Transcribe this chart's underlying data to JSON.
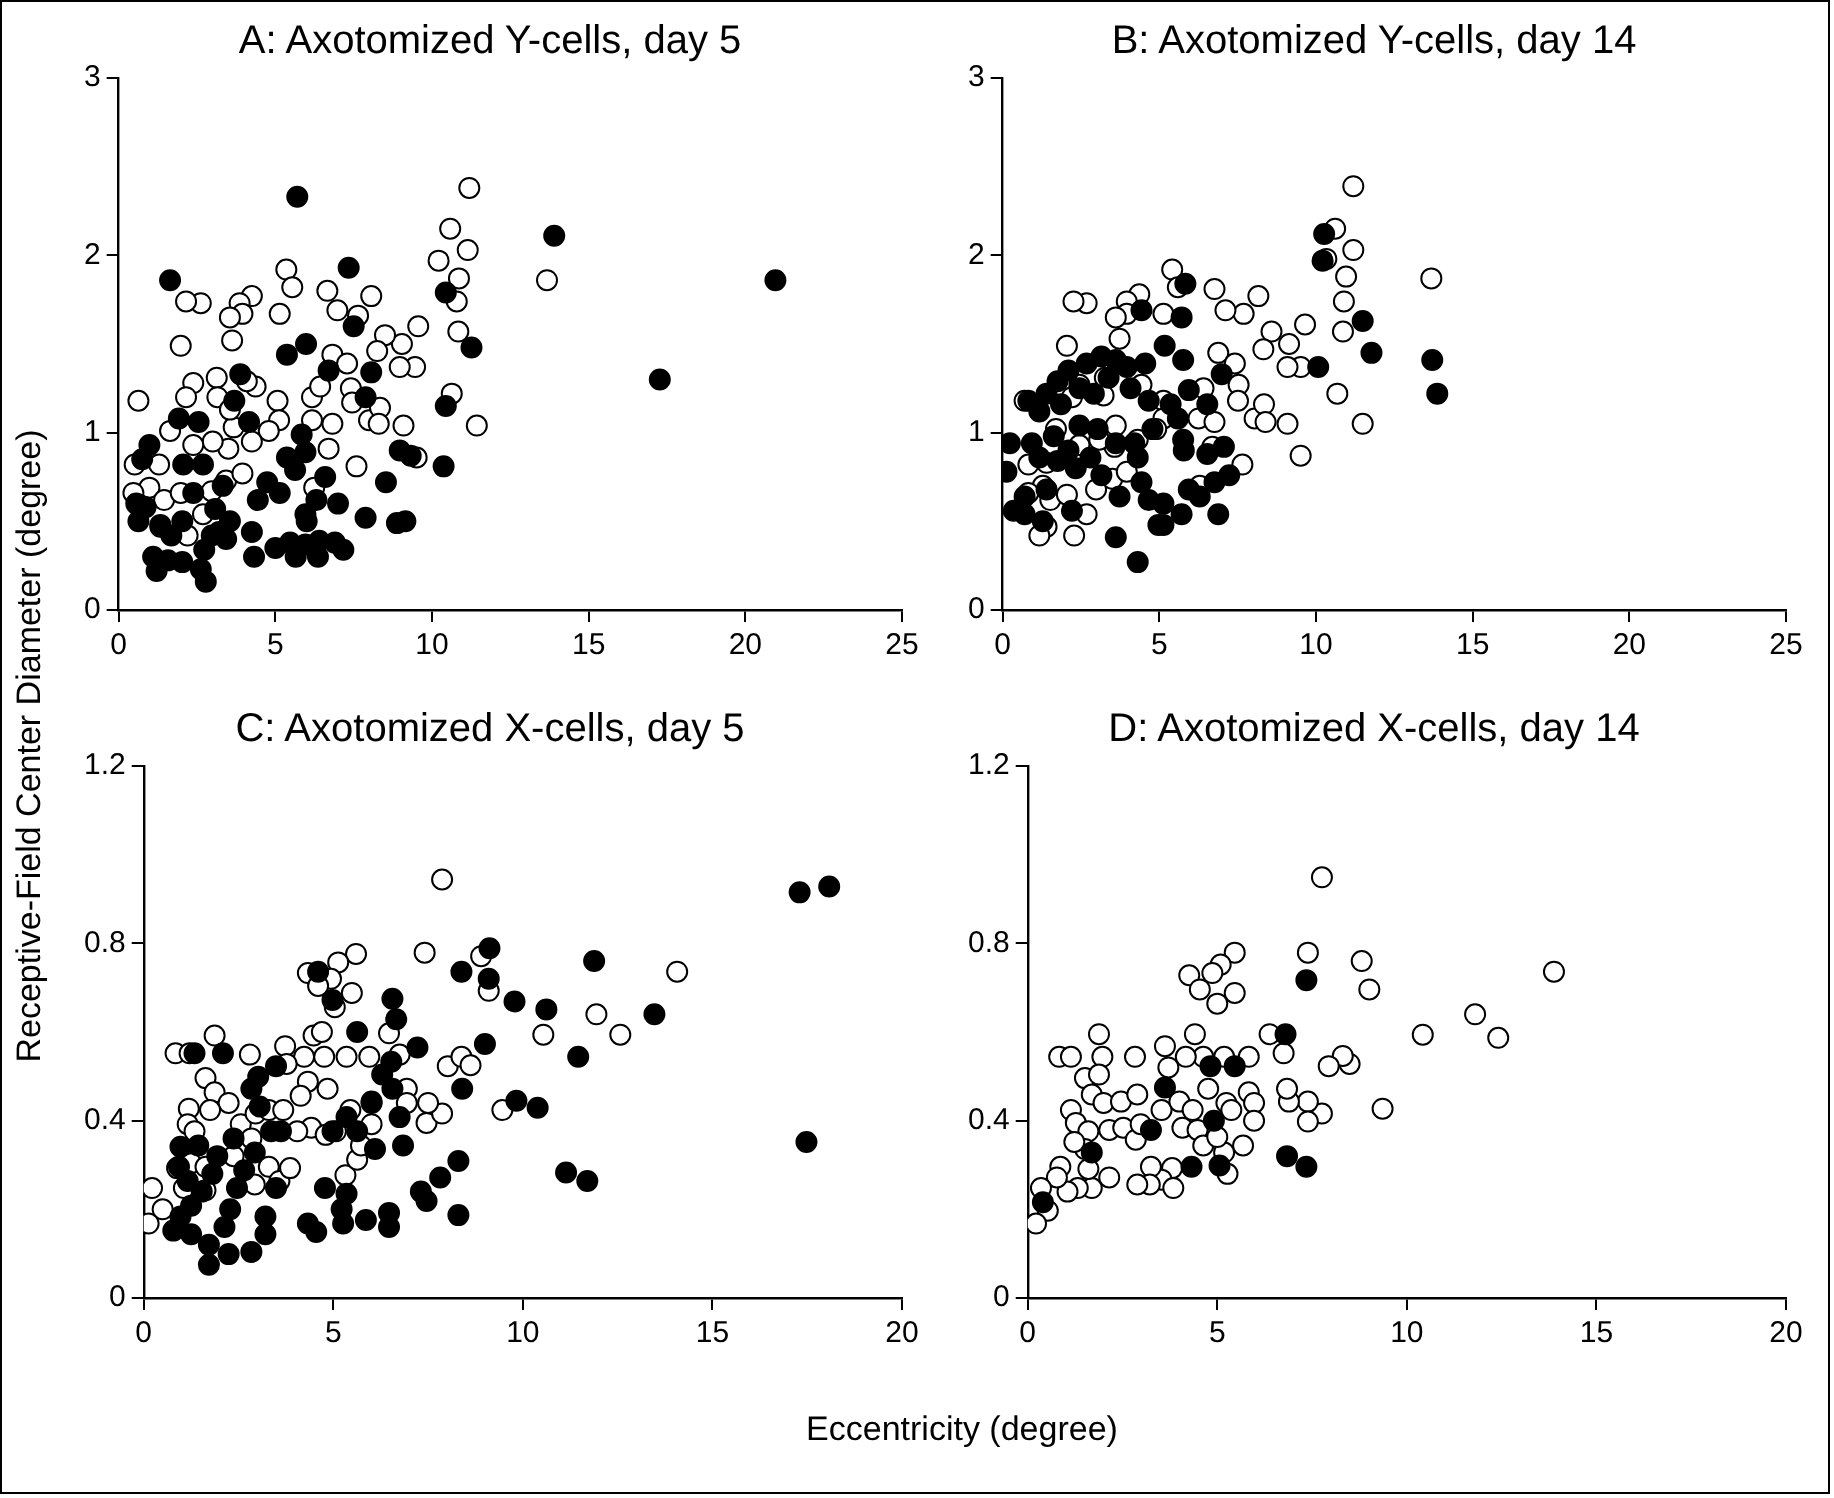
{
  "chart_data": [
    {
      "type": "scatter",
      "title": "A: Axotomized Y-cells, day 5",
      "ylabel": "Receptive-Field Center Diameter (degree)",
      "xlim": [
        0,
        25
      ],
      "xticks": [
        0,
        5,
        10,
        15,
        20,
        25
      ],
      "ylim": [
        0,
        3
      ],
      "yticks": [
        0,
        1,
        2,
        3
      ],
      "marker": "circle",
      "series": [
        {
          "color": "#000000",
          "x": [
            5.7,
            1.64,
            7.34,
            13.9,
            20.96,
            17.27,
            10.44,
            11.26,
            10.44,
            10.37,
            5.37,
            5.98,
            7.5,
            6.7,
            8.06,
            7.88,
            3.88,
            3.69,
            2.55,
            1.92,
            0.98,
            0.75,
            2.06,
            2.69,
            4.16,
            5.84,
            5.96,
            5.37,
            4.74,
            5.14,
            5.63,
            4.44,
            6.31,
            7.0,
            5.96,
            8.53,
            7.88,
            8.88,
            9.15,
            8.97,
            9.32,
            4.25,
            4.32,
            5.0,
            5.47,
            5.96,
            6.4,
            6.9,
            7.17,
            6.36,
            5.65,
            2.97,
            3.2,
            3.43,
            2.73,
            2.62,
            2.78,
            2.03,
            1.57,
            1.1,
            1.21,
            1.68,
            2.03,
            1.33,
            0.63,
            0.56,
            0.86,
            3.32,
            2.38,
            3.08,
            3.55,
            6.59,
            6.0
          ],
          "values": [
            2.33,
            1.86,
            1.93,
            2.11,
            1.86,
            1.3,
            1.79,
            1.48,
            1.15,
            0.81,
            1.44,
            1.5,
            1.6,
            1.35,
            1.34,
            1.2,
            1.33,
            1.18,
            1.06,
            1.08,
            0.93,
            0.85,
            0.82,
            0.82,
            1.06,
            0.99,
            0.89,
            0.86,
            0.72,
            0.66,
            0.79,
            0.62,
            0.62,
            0.6,
            0.54,
            0.72,
            0.52,
            0.49,
            0.5,
            0.9,
            0.87,
            0.44,
            0.3,
            0.35,
            0.38,
            0.37,
            0.39,
            0.38,
            0.34,
            0.3,
            0.3,
            0.42,
            0.44,
            0.4,
            0.34,
            0.23,
            0.16,
            0.27,
            0.28,
            0.3,
            0.22,
            0.42,
            0.5,
            0.48,
            0.5,
            0.6,
            0.58,
            0.7,
            0.66,
            0.57,
            0.5,
            0.75,
            0.5
          ]
        },
        {
          "color": "#ffffff",
          "x": [
            11.19,
            10.58,
            11.14,
            10.21,
            10.86,
            13.67,
            10.79,
            10.84,
            11.43,
            10.63,
            9.56,
            9.46,
            9.04,
            8.5,
            8.25,
            8.06,
            7.64,
            6.98,
            6.66,
            5.35,
            5.54,
            5.14,
            4.25,
            3.86,
            3.95,
            3.55,
            3.62,
            2.62,
            2.15,
            1.98,
            0.63,
            2.38,
            2.15,
            3.13,
            3.15,
            4.37,
            5.07,
            5.12,
            4.79,
            6.17,
            6.17,
            6.43,
            6.82,
            7.29,
            7.41,
            7.45,
            7.59,
            7.99,
            8.34,
            8.3,
            8.97,
            9.09,
            9.51,
            6.82,
            6.7,
            6.24,
            3.67,
            3.5,
            3.0,
            2.97,
            3.43,
            3.95,
            4.25,
            2.38,
            1.64,
            1.29,
            0.51,
            0.98,
            0.47,
            1.45,
            1.98,
            1.33,
            2.2,
            2.69,
            3.55,
            4.09
          ],
          "values": [
            2.38,
            2.15,
            2.03,
            1.97,
            1.87,
            1.86,
            1.74,
            1.57,
            1.04,
            1.22,
            1.6,
            1.37,
            1.5,
            1.55,
            1.46,
            1.77,
            1.66,
            1.69,
            1.8,
            1.92,
            1.82,
            1.67,
            1.77,
            1.73,
            1.67,
            1.65,
            1.52,
            1.73,
            1.74,
            1.49,
            1.18,
            1.28,
            1.2,
            1.31,
            1.2,
            1.26,
            1.18,
            1.07,
            1.01,
            1.2,
            1.07,
            1.26,
            1.44,
            1.39,
            1.25,
            1.17,
            0.81,
            1.07,
            1.14,
            1.05,
            1.37,
            1.04,
            0.86,
            1.05,
            0.91,
            0.69,
            1.03,
            0.91,
            0.95,
            0.67,
            0.73,
            0.77,
            0.95,
            0.93,
            1.01,
            0.82,
            0.82,
            0.69,
            0.66,
            0.62,
            0.66,
            0.47,
            0.42,
            0.54,
            1.13,
            1.29
          ]
        }
      ]
    },
    {
      "type": "scatter",
      "title": "B: Axotomized Y-cells, day 14",
      "xlim": [
        0,
        25
      ],
      "xticks": [
        0,
        5,
        10,
        15,
        20,
        25
      ],
      "ylim": [
        0,
        3
      ],
      "yticks": [
        0,
        1,
        2,
        3
      ],
      "marker": "circle",
      "series": [
        {
          "color": "#000000",
          "x": [
            10.26,
            10.21,
            11.49,
            11.77,
            13.71,
            13.87,
            10.07,
            5.83,
            5.71,
            4.43,
            5.17,
            5.76,
            6.99,
            6.53,
            4.55,
            3.96,
            3.61,
            3.15,
            2.68,
            2.1,
            1.75,
            1.4,
            0.82,
            1.17,
            1.86,
            2.45,
            2.91,
            3.38,
            4.08,
            4.66,
            5.36,
            5.94,
            5.59,
            5.76,
            5.78,
            7.06,
            6.53,
            4.78,
            4.2,
            4.31,
            3.61,
            3.03,
            2.45,
            2.1,
            1.63,
            1.17,
            1.75,
            2.33,
            2.8,
            3.15,
            1.4,
            0.7,
            0.35,
            0.7,
            0.23,
            0.93,
            0.12,
            1.28,
            2.21,
            3.73,
            4.43,
            4.66,
            5.13,
            5.13,
            5.71,
            5.94,
            6.29,
            6.76,
            7.23,
            6.88,
            3.61,
            4.31,
            4.97
          ],
          "values": [
            2.12,
            1.97,
            1.63,
            1.45,
            1.41,
            1.22,
            1.37,
            1.84,
            1.65,
            1.69,
            1.49,
            1.41,
            1.33,
            1.16,
            1.39,
            1.37,
            1.41,
            1.43,
            1.39,
            1.35,
            1.29,
            1.22,
            1.18,
            1.12,
            1.16,
            1.25,
            1.22,
            1.31,
            1.25,
            1.18,
            1.16,
            1.24,
            1.08,
            0.96,
            0.9,
            0.92,
            0.88,
            1.02,
            0.94,
            0.86,
            0.94,
            1.02,
            1.04,
            0.9,
            0.98,
            0.86,
            0.84,
            0.8,
            0.86,
            0.76,
            0.68,
            0.64,
            0.56,
            0.54,
            0.94,
            0.94,
            0.78,
            0.5,
            0.56,
            0.64,
            0.72,
            0.62,
            0.6,
            0.48,
            0.54,
            0.68,
            0.64,
            0.72,
            0.76,
            0.54,
            0.41,
            0.27,
            0.48
          ]
        },
        {
          "color": "#ffffff",
          "x": [
            11.19,
            10.61,
            11.19,
            10.33,
            10.96,
            13.68,
            10.89,
            10.86,
            11.49,
            10.68,
            9.65,
            9.51,
            9.14,
            8.58,
            8.32,
            8.16,
            7.69,
            7.11,
            6.76,
            5.41,
            5.59,
            5.13,
            4.36,
            3.96,
            3.96,
            3.61,
            3.73,
            2.68,
            2.26,
            2.05,
            0.7,
            2.45,
            2.21,
            3.26,
            3.22,
            4.43,
            5.13,
            5.13,
            4.9,
            6.25,
            6.41,
            6.88,
            7.41,
            7.53,
            7.51,
            7.65,
            8.04,
            8.34,
            8.39,
            9.09,
            9.09,
            9.51,
            6.76,
            6.69,
            6.29,
            3.61,
            3.57,
            3.08,
            2.98,
            3.5,
            3.96,
            4.31,
            2.45,
            1.7,
            1.4,
            0.82,
            1.28,
            0.82,
            1.52,
            2.05,
            1.4,
            2.28,
            2.68,
            1.17
          ],
          "values": [
            2.39,
            2.15,
            2.03,
            1.98,
            1.88,
            1.87,
            1.74,
            1.57,
            1.05,
            1.22,
            1.61,
            1.37,
            1.5,
            1.57,
            1.47,
            1.77,
            1.67,
            1.69,
            1.81,
            1.92,
            1.82,
            1.67,
            1.78,
            1.74,
            1.67,
            1.65,
            1.53,
            1.73,
            1.74,
            1.49,
            1.18,
            1.27,
            1.2,
            1.31,
            1.21,
            1.27,
            1.18,
            1.08,
            1.02,
            1.08,
            1.25,
            1.45,
            1.39,
            1.27,
            1.18,
            0.82,
            1.08,
            1.16,
            1.06,
            1.37,
            1.05,
            0.87,
            1.06,
            0.92,
            0.7,
            1.04,
            0.92,
            0.96,
            0.68,
            0.74,
            0.78,
            0.96,
            0.93,
            1.02,
            0.83,
            0.82,
            0.7,
            0.66,
            0.62,
            0.65,
            0.47,
            0.42,
            0.54,
            0.42
          ]
        }
      ]
    },
    {
      "type": "scatter",
      "title": "C: Axotomized X-cells, day 5",
      "xlabel": "Eccentricity (degree)",
      "xlim": [
        0,
        20
      ],
      "xticks": [
        0,
        5,
        10,
        15,
        20
      ],
      "ylim": [
        0,
        1.2
      ],
      "yticks": [
        0,
        0.4,
        0.8,
        1.2
      ],
      "marker": "circle",
      "series": [
        {
          "color": "#000000",
          "x": [
            17.3,
            18.08,
            17.48,
            11.88,
            13.47,
            10.62,
            9.78,
            11.46,
            9.12,
            9.1,
            8.38,
            9.0,
            9.83,
            10.39,
            8.4,
            11.14,
            11.7,
            8.3,
            7.82,
            7.46,
            7.31,
            8.3,
            6.47,
            6.47,
            5.86,
            5.26,
            5.22,
            5.35,
            4.78,
            4.33,
            4.55,
            5.63,
            6.56,
            6.66,
            7.22,
            6.53,
            6.29,
            6.56,
            6.75,
            6.84,
            6.01,
            6.1,
            5.63,
            5.35,
            4.98,
            4.98,
            4.6,
            3.49,
            2.84,
            3.06,
            3.36,
            2.93,
            2.65,
            2.46,
            2.28,
            2.13,
            2.84,
            2.24,
            1.72,
            1.72,
            1.25,
            0.78,
            0.97,
            1.25,
            1.53,
            1.81,
            1.94,
            1.44,
            0.97,
            0.93,
            1.16,
            2.37,
            3.21,
            3.21,
            3.49,
            3.62,
            1.34,
            2.09,
            3.02
          ],
          "values": [
            0.915,
            0.928,
            0.352,
            0.76,
            0.64,
            0.651,
            0.669,
            0.544,
            0.789,
            0.72,
            0.736,
            0.573,
            0.445,
            0.429,
            0.472,
            0.283,
            0.264,
            0.309,
            0.272,
            0.219,
            0.24,
            0.187,
            0.192,
            0.16,
            0.176,
            0.168,
            0.2,
            0.235,
            0.248,
            0.168,
            0.149,
            0.6,
            0.675,
            0.629,
            0.565,
            0.533,
            0.504,
            0.472,
            0.408,
            0.344,
            0.44,
            0.336,
            0.376,
            0.408,
            0.376,
            0.672,
            0.736,
            0.523,
            0.472,
            0.432,
            0.376,
            0.328,
            0.288,
            0.248,
            0.2,
            0.16,
            0.104,
            0.099,
            0.075,
            0.12,
            0.144,
            0.152,
            0.184,
            0.208,
            0.24,
            0.28,
            0.32,
            0.344,
            0.341,
            0.296,
            0.264,
            0.36,
            0.184,
            0.144,
            0.248,
            0.376,
            0.552,
            0.552,
            0.499
          ]
        },
        {
          "color": "#ffffff",
          "x": [
            7.87,
            7.41,
            5.6,
            5.13,
            4.94,
            4.33,
            4.6,
            5.49,
            5.04,
            8.9,
            9.1,
            11.94,
            12.57,
            14.07,
            10.54,
            8.02,
            8.38,
            8.62,
            9.46,
            7.46,
            7.87,
            7.5,
            6.94,
            6.94,
            6.47,
            6.75,
            5.95,
            5.35,
            4.76,
            4.23,
            4.48,
            4.7,
            6.01,
            6.01,
            5.45,
            4.85,
            4.33,
            4.14,
            4.42,
            4.8,
            5.07,
            5.32,
            5.63,
            5.73,
            3.73,
            3.77,
            2.8,
            1.87,
            0.84,
            1.21,
            1.63,
            1.87,
            2.24,
            1.75,
            1.19,
            1.16,
            1.34,
            2.56,
            2.95,
            3.3,
            3.68,
            4.05,
            0.88,
            1.25,
            1.63,
            0.22,
            0.5,
            0.13,
            1.06,
            1.63,
            2.37,
            2.93,
            3.3,
            3.58,
            3.86,
            2.84
          ],
          "values": [
            0.944,
            0.779,
            0.776,
            0.757,
            0.72,
            0.733,
            0.704,
            0.688,
            0.656,
            0.771,
            0.693,
            0.64,
            0.594,
            0.736,
            0.594,
            0.523,
            0.544,
            0.525,
            0.424,
            0.395,
            0.416,
            0.44,
            0.472,
            0.44,
            0.597,
            0.549,
            0.544,
            0.544,
            0.544,
            0.544,
            0.592,
            0.6,
            0.443,
            0.392,
            0.424,
            0.472,
            0.488,
            0.456,
            0.384,
            0.368,
            0.376,
            0.277,
            0.312,
            0.344,
            0.568,
            0.528,
            0.549,
            0.592,
            0.552,
            0.552,
            0.496,
            0.464,
            0.44,
            0.424,
            0.427,
            0.392,
            0.376,
            0.392,
            0.416,
            0.424,
            0.424,
            0.376,
            0.293,
            0.304,
            0.296,
            0.248,
            0.2,
            0.168,
            0.248,
            0.243,
            0.32,
            0.256,
            0.296,
            0.264,
            0.293,
            0.36
          ]
        }
      ]
    },
    {
      "type": "scatter",
      "title": "D: Axotomized X-cells, day 14",
      "xlim": [
        0,
        20
      ],
      "xticks": [
        0,
        5,
        10,
        15,
        20
      ],
      "ylim": [
        0,
        1.2
      ],
      "yticks": [
        0,
        0.4,
        0.8,
        1.2
      ],
      "marker": "circle",
      "series": [
        {
          "color": "#000000",
          "x": [
            7.35,
            6.84,
            7.35,
            6.8,
            4.32,
            4.82,
            5.46,
            4.91,
            3.62,
            3.25,
            1.69,
            0.4,
            5.06
          ],
          "values": [
            0.717,
            0.32,
            0.296,
            0.595,
            0.296,
            0.523,
            0.523,
            0.4,
            0.475,
            0.379,
            0.328,
            0.216,
            0.299
          ]
        },
        {
          "color": "#ffffff",
          "x": [
            7.76,
            7.39,
            8.81,
            9.01,
            13.88,
            11.8,
            12.41,
            10.42,
            9.36,
            8.49,
            8.31,
            7.94,
            7.76,
            7.39,
            7.39,
            6.89,
            6.84,
            6.75,
            6.38,
            5.46,
            5.09,
            4.87,
            5.46,
            5.0,
            4.26,
            4.54,
            4.41,
            4.63,
            5.18,
            5.83,
            4.17,
            3.62,
            3.71,
            2.83,
            1.88,
            1.97,
            0.83,
            1.14,
            1.51,
            1.88,
            1.69,
            2.0,
            2.46,
            2.89,
            1.14,
            1.27,
            1.6,
            2.15,
            2.52,
            2.85,
            2.98,
            3.53,
            4.0,
            4.08,
            4.48,
            4.35,
            4.76,
            5.24,
            5.37,
            5.83,
            5.97,
            5.97,
            5.68,
            5.18,
            4.63,
            5.0,
            5.27,
            3.81,
            3.53,
            3.25,
            3.22,
            2.89,
            3.84,
            2.15,
            1.69,
            1.32,
            1.05,
            0.86,
            0.77,
            1.6,
            1.51,
            1.23,
            0.35,
            0.53,
            0.22
          ],
          "values": [
            0.949,
            0.779,
            0.76,
            0.696,
            0.736,
            0.64,
            0.587,
            0.594,
            0.427,
            0.528,
            0.546,
            0.523,
            0.416,
            0.443,
            0.398,
            0.443,
            0.472,
            0.552,
            0.595,
            0.779,
            0.752,
            0.733,
            0.688,
            0.664,
            0.728,
            0.696,
            0.595,
            0.544,
            0.544,
            0.544,
            0.544,
            0.568,
            0.52,
            0.544,
            0.595,
            0.544,
            0.544,
            0.544,
            0.496,
            0.504,
            0.459,
            0.44,
            0.443,
            0.459,
            0.424,
            0.395,
            0.376,
            0.379,
            0.384,
            0.357,
            0.392,
            0.424,
            0.443,
            0.384,
            0.379,
            0.424,
            0.472,
            0.44,
            0.424,
            0.464,
            0.44,
            0.4,
            0.344,
            0.328,
            0.344,
            0.363,
            0.28,
            0.293,
            0.267,
            0.296,
            0.256,
            0.256,
            0.248,
            0.272,
            0.248,
            0.248,
            0.24,
            0.296,
            0.272,
            0.291,
            0.336,
            0.352,
            0.248,
            0.197,
            0.168
          ]
        }
      ]
    }
  ]
}
